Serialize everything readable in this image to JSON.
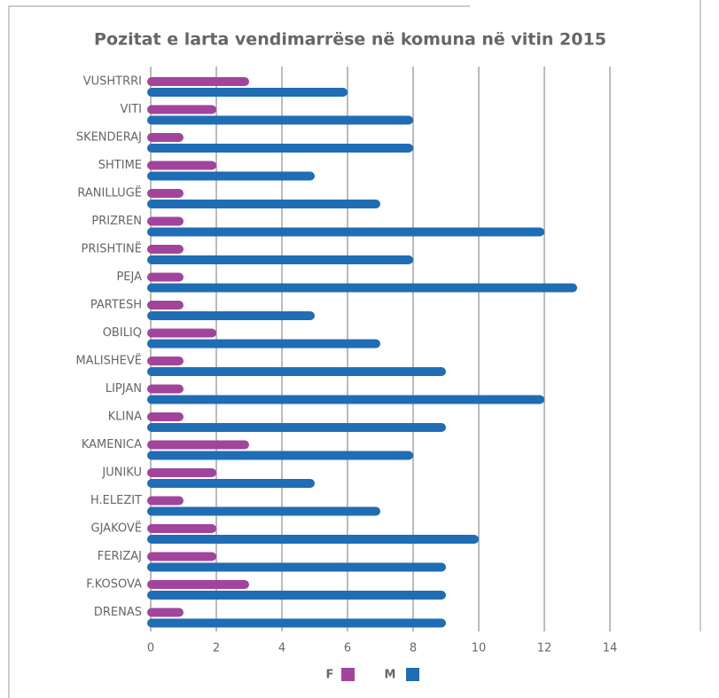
{
  "chart_data": {
    "type": "bar",
    "orientation": "horizontal",
    "title": "Pozitat e larta vendimarrëse në komuna në vitin 2015",
    "categories": [
      "VUSHTRRI",
      "VITI",
      "SKENDERAJ",
      "SHTIME",
      "RANILLUGË",
      "PRIZREN",
      "PRISHTINË",
      "PEJA",
      "PARTESH",
      "OBILIQ",
      "MALISHEVË",
      "LIPJAN",
      "KLINA",
      "KAMENICA",
      "JUNIKU",
      "H.ELEZIT",
      "GJAKOVË",
      "FERIZAJ",
      "F.KOSOVA",
      "DRENAS"
    ],
    "series": [
      {
        "name": "F",
        "color": "#a2449c",
        "values": [
          3,
          2,
          1,
          2,
          1,
          1,
          1,
          1,
          1,
          2,
          1,
          1,
          1,
          3,
          2,
          1,
          2,
          2,
          3,
          1
        ]
      },
      {
        "name": "M",
        "color": "#1f6db4",
        "values": [
          6,
          8,
          8,
          5,
          7,
          12,
          8,
          13,
          5,
          7,
          9,
          12,
          9,
          8,
          5,
          7,
          10,
          9,
          9,
          9
        ]
      }
    ],
    "xlim": [
      0,
      14
    ],
    "xticks": [
      0,
      2,
      4,
      6,
      8,
      10,
      12,
      14
    ],
    "grid": true,
    "legend": "bottom"
  }
}
